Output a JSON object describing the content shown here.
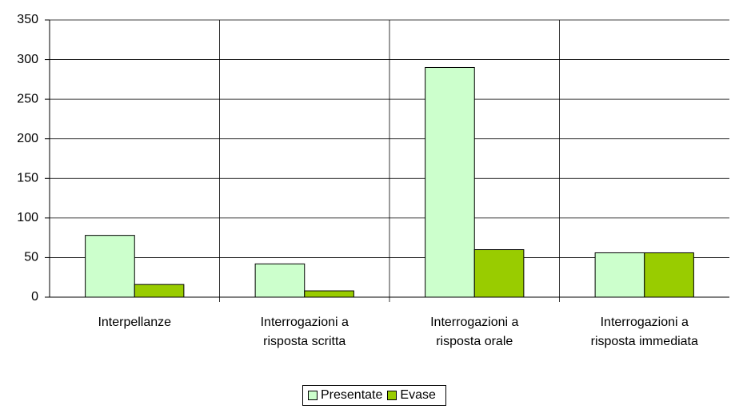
{
  "chart_data": {
    "type": "bar",
    "categories": [
      "Interpellanze",
      "Interrogazioni a risposta scritta",
      "Interrogazioni a risposta orale",
      "Interrogazioni a risposta immediata"
    ],
    "series": [
      {
        "name": "Presentate",
        "color": "#ccffcc",
        "values": [
          78,
          42,
          290,
          56
        ]
      },
      {
        "name": "Evase",
        "color": "#99cc00",
        "values": [
          16,
          8,
          60,
          56
        ]
      }
    ],
    "ylim": [
      0,
      350
    ],
    "yticks": [
      0,
      50,
      100,
      150,
      200,
      250,
      300,
      350
    ],
    "grid": true,
    "legend": "bottom"
  }
}
